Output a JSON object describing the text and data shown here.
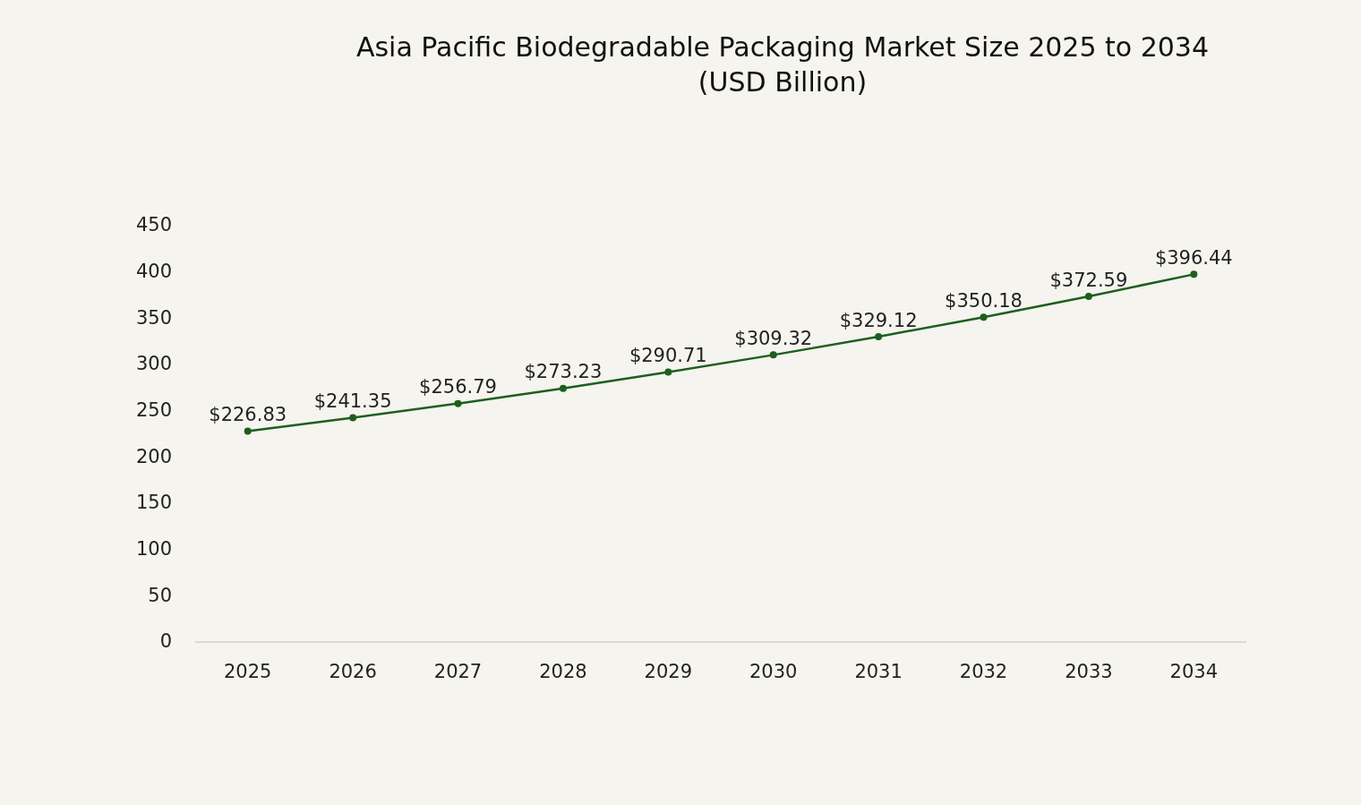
{
  "chart_data": {
    "type": "line",
    "title": "Asia Pacific Biodegradable Packaging Market Size 2025 to 2034\n(USD Billion)",
    "categories": [
      "2025",
      "2026",
      "2027",
      "2028",
      "2029",
      "2030",
      "2031",
      "2032",
      "2033",
      "2034"
    ],
    "series": [
      {
        "color": "#1e5e1e",
        "values": [
          226.83,
          241.35,
          256.79,
          273.23,
          290.71,
          309.32,
          329.12,
          350.18,
          372.59,
          396.44
        ],
        "value_labels": [
          "$226.83",
          "$241.35",
          "$256.79",
          "$273.23",
          "$290.71",
          "$309.32",
          "$329.12",
          "$350.18",
          "$372.59",
          "$396.44"
        ]
      }
    ],
    "ylim": [
      0,
      450
    ],
    "yticks": [
      0,
      50,
      100,
      150,
      200,
      250,
      300,
      350,
      400,
      450
    ],
    "grid": false,
    "marker": "circle",
    "line_style": "solid"
  }
}
